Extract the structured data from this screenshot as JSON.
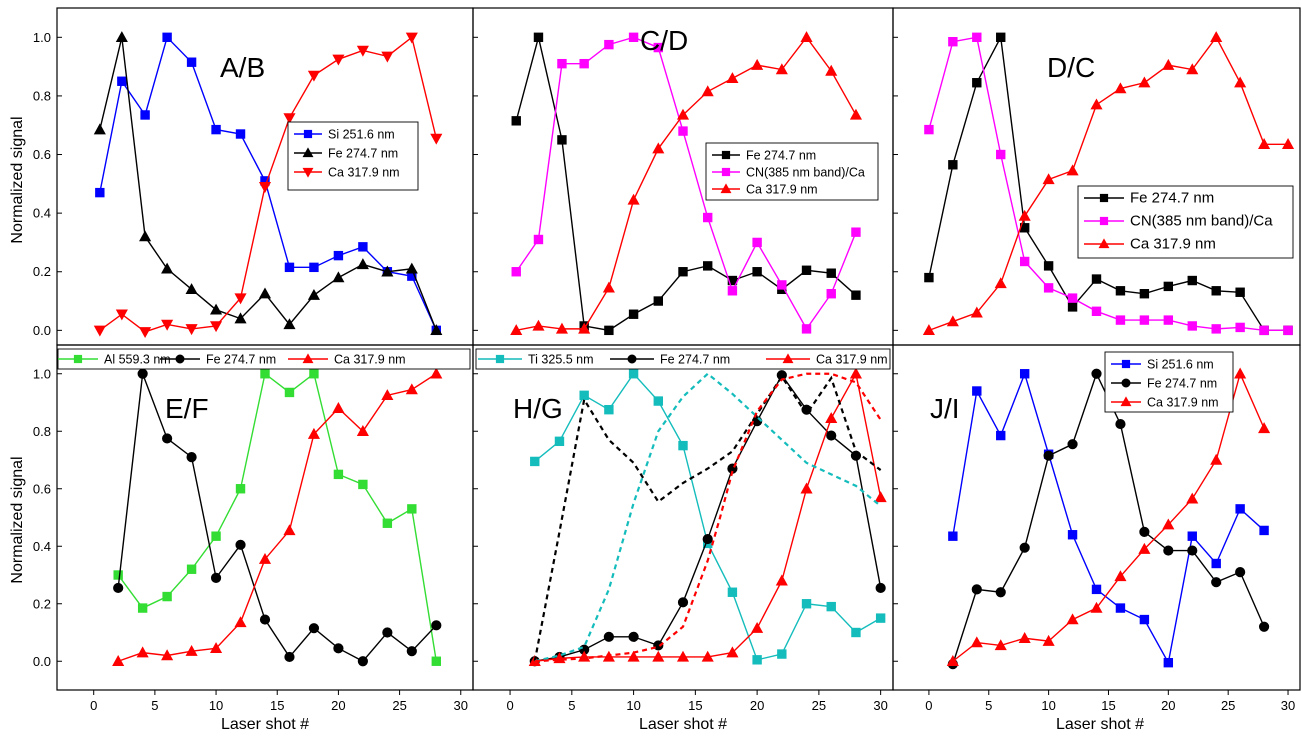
{
  "figure": {
    "ylabel": "Normalized signal",
    "xlabel": "Laser shot #"
  },
  "axes": {
    "x_ticks": [
      "0",
      "5",
      "10",
      "15",
      "20",
      "25",
      "30"
    ],
    "y_ticks": [
      "0.0",
      "0.2",
      "0.4",
      "0.6",
      "0.8",
      "1.0"
    ]
  },
  "colors": {
    "black": "#000000",
    "red": "#ff0000",
    "blue": "#0000ff",
    "magenta": "#ff00ff",
    "green": "#33dd33",
    "cyan": "#14bcbc"
  },
  "chart_data": [
    {
      "type": "line",
      "panel": "A/B",
      "xlim": [
        -3,
        31
      ],
      "ylim": [
        -0.05,
        1.1
      ],
      "legend_position": "center-right",
      "series": [
        {
          "name": "Si 251.6 nm",
          "color": "#0000ff",
          "marker": "square",
          "x": [
            0.5,
            2.3,
            4.2,
            6.0,
            8.0,
            10.0,
            12.0,
            14.0,
            16.0,
            18.0,
            20.0,
            22.0,
            24.0,
            26.0,
            28.0
          ],
          "y": [
            0.47,
            0.85,
            0.735,
            1.0,
            0.915,
            0.685,
            0.67,
            0.51,
            0.215,
            0.215,
            0.255,
            0.285,
            0.2,
            0.185,
            0.0
          ]
        },
        {
          "name": "Fe 274.7 nm",
          "color": "#000000",
          "marker": "triangle-up",
          "x": [
            0.5,
            2.3,
            4.2,
            6.0,
            8.0,
            10.0,
            12.0,
            14.0,
            16.0,
            18.0,
            20.0,
            22.0,
            24.0,
            26.0,
            28.0
          ],
          "y": [
            0.685,
            1.0,
            0.32,
            0.21,
            0.14,
            0.07,
            0.04,
            0.125,
            0.02,
            0.12,
            0.18,
            0.225,
            0.2,
            0.21,
            0.0
          ]
        },
        {
          "name": "Ca 317.9 nm",
          "color": "#ff0000",
          "marker": "triangle-down",
          "x": [
            0.5,
            2.3,
            4.2,
            6.0,
            8.0,
            10.0,
            12.0,
            14.0,
            16.0,
            18.0,
            20.0,
            22.0,
            24.0,
            26.0,
            28.0
          ],
          "y": [
            0.0,
            0.055,
            -0.005,
            0.02,
            0.005,
            0.015,
            0.11,
            0.49,
            0.725,
            0.87,
            0.925,
            0.955,
            0.935,
            1.0,
            0.655
          ]
        }
      ]
    },
    {
      "type": "line",
      "panel": "C/D",
      "xlim": [
        -3,
        31
      ],
      "ylim": [
        -0.05,
        1.1
      ],
      "legend_position": "center-right",
      "series": [
        {
          "name": "Fe 274.7 nm",
          "color": "#000000",
          "marker": "square",
          "x": [
            0.5,
            2.3,
            4.2,
            6.0,
            8.0,
            10.0,
            12.0,
            14.0,
            16.0,
            18.0,
            20.0,
            22.0,
            24.0,
            26.0,
            28.0
          ],
          "y": [
            0.715,
            1.0,
            0.65,
            0.015,
            0.0,
            0.055,
            0.1,
            0.2,
            0.22,
            0.17,
            0.2,
            0.14,
            0.205,
            0.195,
            0.12
          ]
        },
        {
          "name": "CN(385 nm band)/Ca",
          "color": "#ff00ff",
          "marker": "square",
          "x": [
            0.5,
            2.3,
            4.2,
            6.0,
            8.0,
            10.0,
            12.0,
            14.0,
            16.0,
            18.0,
            20.0,
            22.0,
            24.0,
            26.0,
            28.0
          ],
          "y": [
            0.2,
            0.31,
            0.91,
            0.91,
            0.975,
            1.0,
            0.965,
            0.68,
            0.385,
            0.135,
            0.3,
            0.155,
            0.005,
            0.125,
            0.335
          ]
        },
        {
          "name": "Ca 317.9 nm",
          "color": "#ff0000",
          "marker": "triangle-up",
          "x": [
            0.5,
            2.3,
            4.2,
            6.0,
            8.0,
            10.0,
            12.0,
            14.0,
            16.0,
            18.0,
            20.0,
            22.0,
            24.0,
            26.0,
            28.0
          ],
          "y": [
            0.0,
            0.015,
            0.005,
            0.005,
            0.145,
            0.445,
            0.62,
            0.735,
            0.815,
            0.86,
            0.905,
            0.89,
            1.0,
            0.885,
            0.735
          ]
        }
      ]
    },
    {
      "type": "line",
      "panel": "D/C",
      "xlim": [
        -3,
        31
      ],
      "ylim": [
        -0.05,
        1.1
      ],
      "legend_position": "center-right",
      "series": [
        {
          "name": "Fe 274.7 nm",
          "color": "#000000",
          "marker": "square",
          "x": [
            0.0,
            2.0,
            4.0,
            6.0,
            8.0,
            10.0,
            12.0,
            14.0,
            16.0,
            18.0,
            20.0,
            22.0,
            24.0,
            26.0,
            28.0,
            30.0
          ],
          "y": [
            0.18,
            0.565,
            0.845,
            1.0,
            0.35,
            0.22,
            0.08,
            0.175,
            0.135,
            0.125,
            0.15,
            0.17,
            0.135,
            0.13,
            0.0,
            0.0
          ]
        },
        {
          "name": "CN(385 nm band)/Ca",
          "color": "#ff00ff",
          "marker": "square",
          "x": [
            0.0,
            2.0,
            4.0,
            6.0,
            8.0,
            10.0,
            12.0,
            14.0,
            16.0,
            18.0,
            20.0,
            22.0,
            24.0,
            26.0,
            28.0,
            30.0
          ],
          "y": [
            0.685,
            0.985,
            1.0,
            0.6,
            0.235,
            0.145,
            0.11,
            0.065,
            0.035,
            0.035,
            0.035,
            0.015,
            0.005,
            0.01,
            0.0,
            0.0
          ]
        },
        {
          "name": "Ca 317.9 nm",
          "color": "#ff0000",
          "marker": "triangle-up",
          "x": [
            0.0,
            2.0,
            4.0,
            6.0,
            8.0,
            10.0,
            12.0,
            14.0,
            16.0,
            18.0,
            20.0,
            22.0,
            24.0,
            26.0,
            28.0,
            30.0
          ],
          "y": [
            0.0,
            0.03,
            0.06,
            0.16,
            0.39,
            0.515,
            0.545,
            0.77,
            0.825,
            0.845,
            0.905,
            0.89,
            1.0,
            0.845,
            0.635,
            0.635
          ]
        }
      ]
    },
    {
      "type": "line",
      "panel": "E/F",
      "xlim": [
        -3,
        31
      ],
      "ylim": [
        -0.1,
        1.1
      ],
      "legend_position": "top",
      "series": [
        {
          "name": "Al  559.3 nm",
          "color": "#33dd33",
          "marker": "square",
          "x": [
            2,
            4,
            6,
            8,
            10,
            12,
            14,
            16,
            18,
            20,
            22,
            24,
            26,
            28
          ],
          "y": [
            0.3,
            0.185,
            0.225,
            0.32,
            0.435,
            0.6,
            1.0,
            0.935,
            1.0,
            0.65,
            0.615,
            0.48,
            0.53,
            0.0
          ]
        },
        {
          "name": "Fe 274.7 nm",
          "color": "#000000",
          "marker": "circle",
          "x": [
            2,
            4,
            6,
            8,
            10,
            12,
            14,
            16,
            18,
            20,
            22,
            24,
            26,
            28
          ],
          "y": [
            0.255,
            1.0,
            0.775,
            0.71,
            0.29,
            0.405,
            0.145,
            0.015,
            0.115,
            0.045,
            0.0,
            0.1,
            0.035,
            0.125
          ]
        },
        {
          "name": "Ca 317.9 nm",
          "color": "#ff0000",
          "marker": "triangle-up",
          "x": [
            2,
            4,
            6,
            8,
            10,
            12,
            14,
            16,
            18,
            20,
            22,
            24,
            26,
            28
          ],
          "y": [
            0.0,
            0.03,
            0.02,
            0.035,
            0.045,
            0.135,
            0.355,
            0.455,
            0.79,
            0.88,
            0.8,
            0.925,
            0.945,
            1.0
          ]
        }
      ]
    },
    {
      "type": "line",
      "panel": "H/G",
      "xlim": [
        -3,
        31
      ],
      "ylim": [
        -0.1,
        1.1
      ],
      "legend_position": "top",
      "series": [
        {
          "name": "Ti  325.5 nm",
          "color": "#14bcbc",
          "marker": "square",
          "x": [
            2,
            4,
            6,
            8,
            10,
            12,
            14,
            16,
            18,
            20,
            22,
            24,
            26,
            28,
            30
          ],
          "y": [
            0.695,
            0.765,
            0.925,
            0.875,
            1.0,
            0.905,
            0.75,
            0.41,
            0.24,
            0.005,
            0.025,
            0.2,
            0.19,
            0.1,
            0.15
          ]
        },
        {
          "name": "Fe 274.7 nm",
          "color": "#000000",
          "marker": "circle",
          "x": [
            2,
            4,
            6,
            8,
            10,
            12,
            14,
            16,
            18,
            20,
            22,
            24,
            26,
            28,
            30
          ],
          "y": [
            0.0,
            0.015,
            0.04,
            0.085,
            0.085,
            0.055,
            0.205,
            0.425,
            0.67,
            0.835,
            0.995,
            0.875,
            0.785,
            0.715,
            0.255
          ]
        },
        {
          "name": "Ca 317.9 nm",
          "color": "#ff0000",
          "marker": "triangle-up",
          "x": [
            2,
            4,
            6,
            8,
            10,
            12,
            14,
            16,
            18,
            20,
            22,
            24,
            26,
            28,
            30
          ],
          "y": [
            0.0,
            0.01,
            0.015,
            0.015,
            0.015,
            0.015,
            0.015,
            0.015,
            0.03,
            0.115,
            0.28,
            0.6,
            0.845,
            1.0,
            0.57
          ]
        },
        {
          "name": "",
          "color": "#000000",
          "marker": "none",
          "dashed": true,
          "x": [
            2,
            4,
            6,
            8,
            10,
            12,
            14,
            16,
            18,
            20,
            22,
            24,
            26,
            28,
            30
          ],
          "y": [
            0.0,
            0.45,
            0.91,
            0.77,
            0.69,
            0.555,
            0.62,
            0.67,
            0.73,
            0.86,
            0.99,
            0.86,
            0.985,
            0.73,
            0.665
          ]
        },
        {
          "name": "",
          "color": "#14bcbc",
          "marker": "none",
          "dashed": true,
          "x": [
            2,
            4,
            6,
            8,
            10,
            12,
            14,
            16,
            18,
            20,
            22,
            24,
            26,
            28,
            30
          ],
          "y": [
            0.0,
            0.02,
            0.05,
            0.25,
            0.55,
            0.8,
            0.92,
            1.0,
            0.93,
            0.85,
            0.77,
            0.69,
            0.65,
            0.61,
            0.54
          ]
        },
        {
          "name": "",
          "color": "#ff0000",
          "marker": "none",
          "dashed": true,
          "x": [
            2,
            4,
            6,
            8,
            10,
            12,
            14,
            16,
            17,
            18,
            20,
            22,
            24,
            26,
            28,
            30
          ],
          "y": [
            0.0,
            0.005,
            0.01,
            0.02,
            0.03,
            0.05,
            0.12,
            0.35,
            0.5,
            0.66,
            0.87,
            0.98,
            1.0,
            1.0,
            0.97,
            0.84
          ]
        }
      ]
    },
    {
      "type": "line",
      "panel": "J/I",
      "xlim": [
        -3,
        31
      ],
      "ylim": [
        -0.1,
        1.1
      ],
      "legend_position": "top-right",
      "series": [
        {
          "name": "Si 251.6 nm",
          "color": "#0000ff",
          "marker": "square",
          "x": [
            2,
            4,
            6,
            8,
            10,
            12,
            14,
            16,
            18,
            20,
            22,
            24,
            26,
            28
          ],
          "y": [
            0.435,
            0.94,
            0.785,
            1.0,
            0.72,
            0.44,
            0.25,
            0.185,
            0.145,
            -0.005,
            0.435,
            0.34,
            0.53,
            0.455
          ]
        },
        {
          "name": "Fe 274.7 nm",
          "color": "#000000",
          "marker": "circle",
          "x": [
            2,
            4,
            6,
            8,
            10,
            12,
            14,
            16,
            18,
            20,
            22,
            24,
            26,
            28
          ],
          "y": [
            -0.01,
            0.25,
            0.24,
            0.395,
            0.715,
            0.755,
            1.0,
            0.825,
            0.45,
            0.385,
            0.385,
            0.275,
            0.31,
            0.12
          ]
        },
        {
          "name": "Ca 317.9 nm",
          "color": "#ff0000",
          "marker": "triangle-up",
          "x": [
            2,
            4,
            6,
            8,
            10,
            12,
            14,
            16,
            18,
            20,
            22,
            24,
            26,
            28
          ],
          "y": [
            0.0,
            0.065,
            0.055,
            0.08,
            0.07,
            0.145,
            0.185,
            0.295,
            0.39,
            0.475,
            0.565,
            0.7,
            1.0,
            0.81
          ]
        }
      ]
    }
  ]
}
